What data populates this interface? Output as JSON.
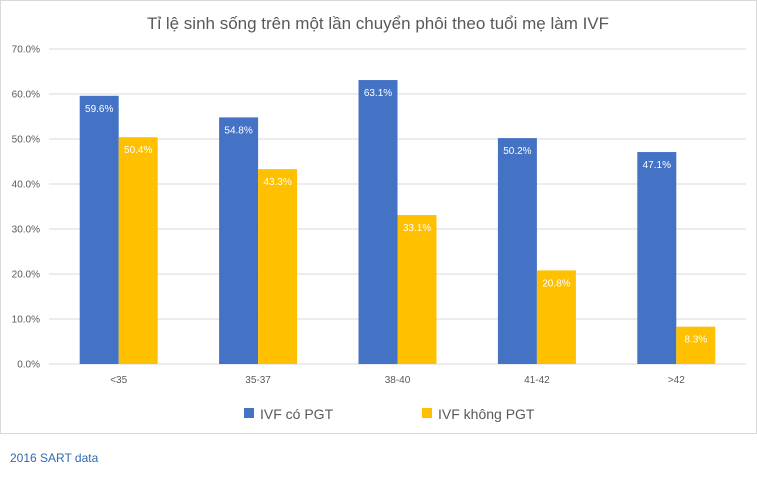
{
  "chart_data": {
    "type": "bar",
    "title": "Tỉ lệ sinh sống trên một lần chuyển phôi theo tuổi mẹ làm IVF",
    "categories": [
      "<35",
      "35-37",
      "38-40",
      "41-42",
      ">42"
    ],
    "series": [
      {
        "name": "IVF có PGT",
        "color": "#4472c4",
        "values": [
          59.6,
          54.8,
          63.1,
          50.2,
          47.1
        ],
        "labels": [
          "59.6%",
          "54.8%",
          "63.1%",
          "50.2%",
          "47.1%"
        ]
      },
      {
        "name": "IVF không PGT",
        "color": "#ffc000",
        "values": [
          50.4,
          43.3,
          33.1,
          20.8,
          8.3
        ],
        "labels": [
          "50.4%",
          "43.3%",
          "33.1%",
          "20.8%",
          "8.3%"
        ]
      }
    ],
    "ylim": [
      0,
      70
    ],
    "yticks": [
      0,
      10,
      20,
      30,
      40,
      50,
      60,
      70
    ],
    "ytick_labels": [
      "0.0%",
      "10.0%",
      "20.0%",
      "30.0%",
      "40.0%",
      "50.0%",
      "60.0%",
      "70.0%"
    ],
    "grid": true,
    "legend_position": "bottom",
    "gridline_color": "#d9d9d9"
  },
  "source_note": "2016 SART data"
}
